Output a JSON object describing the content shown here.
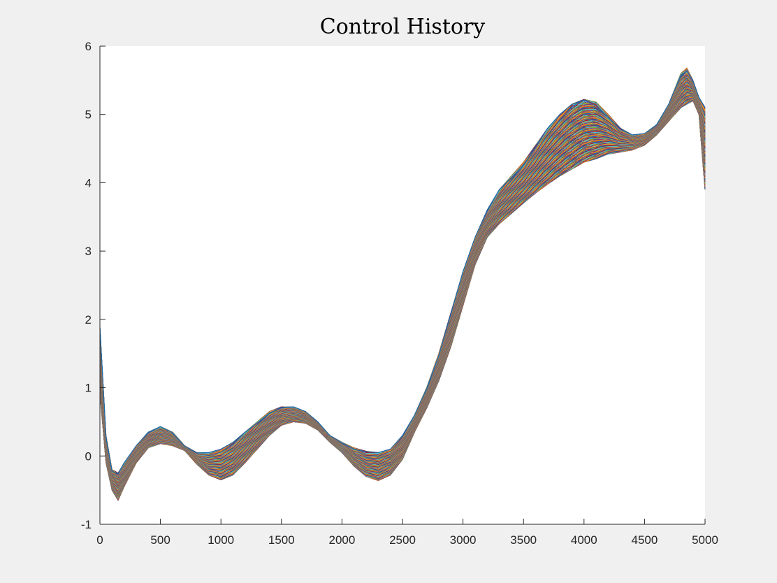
{
  "chart_data": {
    "type": "line",
    "title": "Control History",
    "xlabel": "",
    "ylabel": "",
    "xlim": [
      0,
      5000
    ],
    "ylim": [
      -1,
      6
    ],
    "x_ticks": [
      "0",
      "500",
      "1000",
      "1500",
      "2000",
      "2500",
      "3000",
      "3500",
      "4000",
      "4500",
      "5000"
    ],
    "y_ticks": [
      "-1",
      "0",
      "1",
      "2",
      "3",
      "4",
      "5",
      "6"
    ],
    "grid": false,
    "legend": "none",
    "series_count_approx": 400,
    "colors": [
      "#0072BD",
      "#D95319",
      "#EDB120",
      "#7E2F8E",
      "#77AC30",
      "#4DBEEE",
      "#A2142F"
    ],
    "envelope": {
      "x": [
        0,
        50,
        100,
        150,
        200,
        300,
        400,
        500,
        600,
        700,
        800,
        900,
        1000,
        1100,
        1200,
        1300,
        1400,
        1500,
        1600,
        1700,
        1800,
        1900,
        2000,
        2100,
        2200,
        2300,
        2400,
        2500,
        2600,
        2700,
        2800,
        2900,
        3000,
        3100,
        3200,
        3300,
        3400,
        3500,
        3600,
        3700,
        3800,
        3900,
        4000,
        4100,
        4200,
        4300,
        4400,
        4500,
        4600,
        4700,
        4800,
        4850,
        4900,
        4950,
        5000
      ],
      "upper": [
        1.9,
        0.3,
        -0.2,
        -0.25,
        -0.1,
        0.15,
        0.35,
        0.43,
        0.35,
        0.15,
        0.05,
        0.05,
        0.1,
        0.2,
        0.35,
        0.5,
        0.65,
        0.72,
        0.72,
        0.65,
        0.5,
        0.3,
        0.2,
        0.12,
        0.07,
        0.05,
        0.1,
        0.3,
        0.6,
        1.0,
        1.5,
        2.1,
        2.7,
        3.2,
        3.6,
        3.9,
        4.1,
        4.3,
        4.55,
        4.8,
        5.0,
        5.15,
        5.22,
        5.18,
        5.0,
        4.8,
        4.7,
        4.72,
        4.85,
        5.15,
        5.6,
        5.68,
        5.5,
        5.25,
        5.1
      ],
      "lower": [
        0.9,
        -0.1,
        -0.5,
        -0.65,
        -0.45,
        -0.1,
        0.12,
        0.18,
        0.15,
        0.08,
        -0.12,
        -0.28,
        -0.35,
        -0.28,
        -0.1,
        0.1,
        0.3,
        0.45,
        0.5,
        0.48,
        0.38,
        0.2,
        0.05,
        -0.15,
        -0.3,
        -0.36,
        -0.28,
        -0.05,
        0.35,
        0.7,
        1.1,
        1.6,
        2.2,
        2.8,
        3.2,
        3.4,
        3.55,
        3.7,
        3.85,
        3.98,
        4.1,
        4.2,
        4.3,
        4.35,
        4.42,
        4.45,
        4.48,
        4.55,
        4.7,
        4.9,
        5.1,
        5.15,
        5.2,
        5.0,
        3.9
      ]
    }
  }
}
